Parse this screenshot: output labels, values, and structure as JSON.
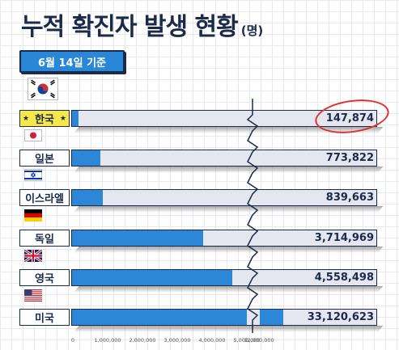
{
  "header": {
    "title": "누적 확진자 발생 현황",
    "unit": "(명)",
    "date": "6월 14일 기준"
  },
  "colors": {
    "bar": "#2d87d8",
    "track": "#e4e7ef",
    "highlight": "#f7e84a",
    "circle": "#e03131",
    "dark": "#1c2a4a"
  },
  "chart_data": {
    "type": "bar",
    "orientation": "horizontal",
    "title": "누적 확진자 발생 현황",
    "unit": "(명)",
    "categories": [
      "한국",
      "일본",
      "이스라엘",
      "독일",
      "영국",
      "미국"
    ],
    "values": [
      147874,
      773822,
      839663,
      3714969,
      4558498,
      33120623
    ],
    "value_labels": [
      "147,874",
      "773,822",
      "839,663",
      "3,714,969",
      "4,558,498",
      "33,120,623"
    ],
    "flags": [
      "korea-flag-icon",
      "japan-flag-icon",
      "israel-flag-icon",
      "germany-flag-icon",
      "uk-flag-icon",
      "usa-flag-icon"
    ],
    "highlight_category": "한국",
    "x_ticks": [
      "0",
      "1,000,000",
      "2,000,000",
      "3,000,000",
      "4,000,000",
      "5,000,000",
      "32,000,000"
    ],
    "x_tick_values": [
      0,
      1000000,
      2000000,
      3000000,
      4000000,
      5000000,
      32000000
    ],
    "axis_break": [
      5000000,
      32000000
    ],
    "xlim": [
      0,
      33500000
    ]
  }
}
